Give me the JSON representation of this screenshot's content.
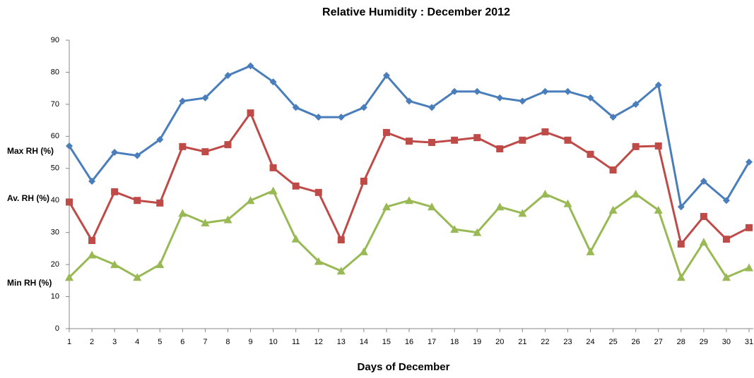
{
  "chart_data": {
    "type": "line",
    "title": "Relative Humidity : December 2012",
    "x_label": "Days of December",
    "categories": [
      1,
      2,
      3,
      4,
      5,
      6,
      7,
      8,
      9,
      10,
      11,
      12,
      13,
      14,
      15,
      16,
      17,
      18,
      19,
      20,
      21,
      22,
      23,
      24,
      25,
      26,
      27,
      28,
      29,
      30,
      31
    ],
    "ylim": [
      0,
      90
    ],
    "yticks": [
      0,
      10,
      20,
      30,
      40,
      50,
      60,
      70,
      80,
      90
    ],
    "grid": false,
    "series": [
      {
        "name": "Max RH (%)",
        "color": "#4a7ebb",
        "marker": "diamond",
        "values": [
          57,
          46,
          55,
          54,
          59,
          71,
          72,
          79,
          82,
          77,
          69,
          66,
          66,
          69,
          79,
          71,
          69,
          74,
          74,
          72,
          71,
          74,
          74,
          72,
          66,
          70,
          76,
          38,
          46,
          40,
          52
        ]
      },
      {
        "name": "Av. RH (%)",
        "color": "#be4b48",
        "marker": "square",
        "values": [
          39.5,
          27.5,
          42.7,
          40,
          39.2,
          56.8,
          55.2,
          57.4,
          67.3,
          50.2,
          44.5,
          42.5,
          27.7,
          46,
          61.2,
          58.5,
          58.1,
          58.8,
          59.6,
          56.1,
          58.8,
          61.4,
          58.8,
          54.4,
          49.5,
          56.8,
          57,
          26.4,
          35,
          27.9,
          31.5
        ]
      },
      {
        "name": "Min RH (%)",
        "color": "#98b954",
        "marker": "triangle",
        "values": [
          16,
          23,
          20,
          16,
          20,
          36,
          33,
          34,
          40,
          43,
          28,
          21,
          18,
          24,
          38,
          40,
          38,
          31,
          30,
          38,
          36,
          42,
          39,
          24,
          37,
          42,
          37,
          16,
          27,
          16,
          19
        ]
      }
    ]
  }
}
